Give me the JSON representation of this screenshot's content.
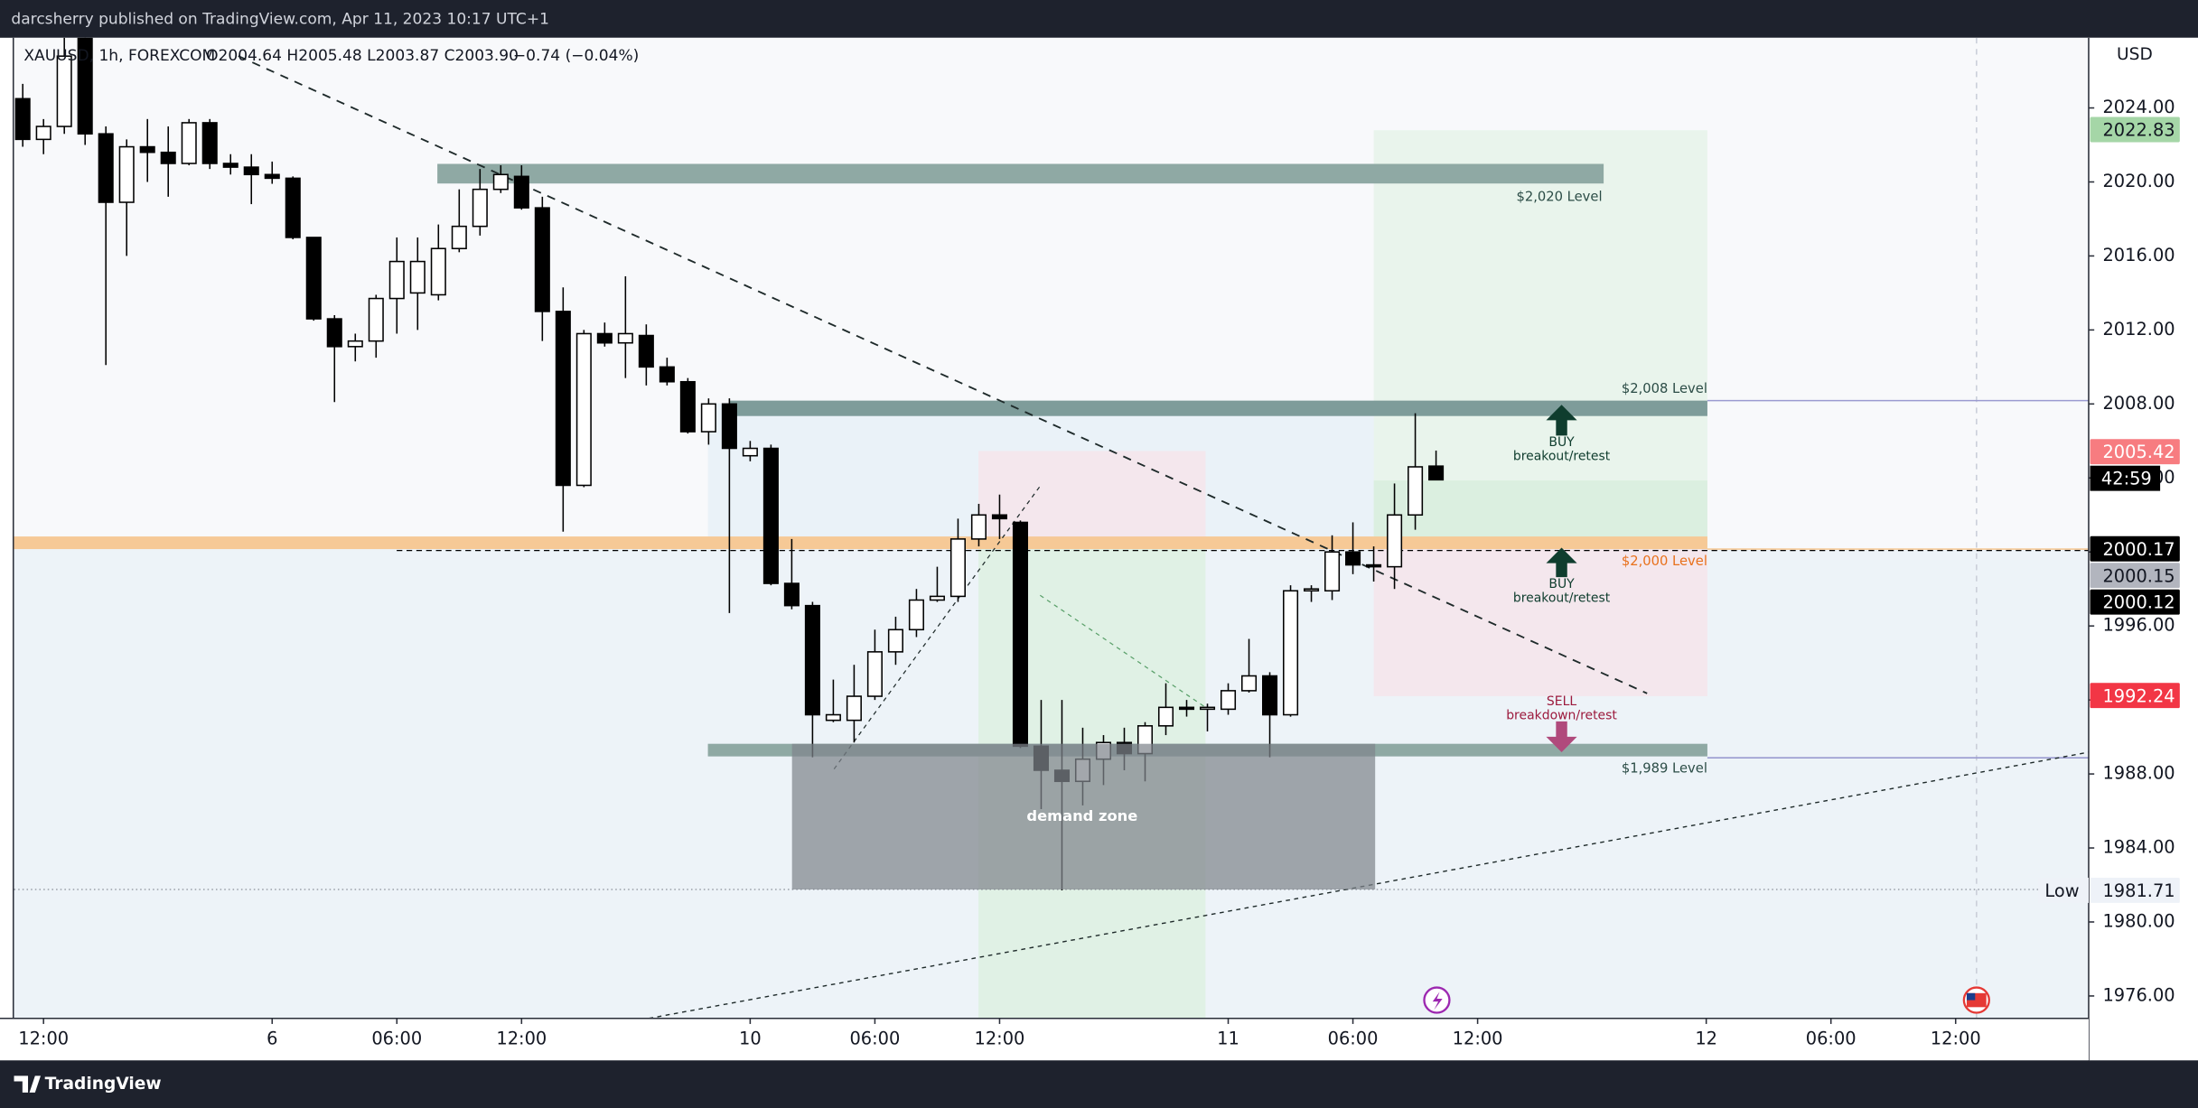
{
  "header": {
    "publisher": "darcsherry published on TradingView.com, Apr 11, 2023 10:17 UTC+1",
    "brand": "TradingView"
  },
  "chart_data": {
    "type": "candlestick",
    "symbol": "XAUUSD, 1h, FOREXCOM",
    "ohlc": "O2004.64 H2005.48 L2003.87 C2003.90",
    "change": "−0.74 (−0.04%)",
    "y_unit": "USD",
    "x": [
      -1,
      0,
      1,
      2,
      3,
      4,
      5,
      6,
      7,
      8,
      9,
      10,
      11,
      12,
      13,
      14,
      15,
      16,
      17,
      18,
      19,
      20,
      21,
      22,
      23,
      24,
      25,
      26,
      27,
      28,
      29,
      30,
      31,
      32,
      33,
      34,
      35,
      36,
      37,
      38,
      39,
      40,
      41,
      42,
      43,
      44,
      45,
      46,
      47,
      48,
      49,
      50,
      51,
      52,
      53,
      54,
      55,
      56,
      57,
      58,
      59,
      60,
      61,
      62,
      63,
      64,
      65,
      66,
      67
    ],
    "open": [
      2024.5,
      2022.3,
      2023.0,
      2027.8,
      2022.6,
      2018.9,
      2021.9,
      2021.6,
      2021.0,
      2023.2,
      2021.0,
      2020.8,
      2020.4,
      2020.2,
      2017.0,
      2012.6,
      2011.1,
      2011.4,
      2013.7,
      2014.0,
      2013.9,
      2016.4,
      2017.6,
      2019.6,
      2020.3,
      2018.6,
      2013.0,
      2003.6,
      2011.8,
      2011.3,
      2011.7,
      2010.0,
      2009.2,
      2006.5,
      2008.0,
      2005.2,
      2005.6,
      1998.3,
      1997.1,
      1990.9,
      1990.9,
      1992.2,
      1994.6,
      1995.8,
      1997.4,
      1997.6,
      2000.7,
      2002.0,
      2001.6,
      1989.5,
      1988.2,
      1987.6,
      1988.8,
      1989.7,
      1989.1,
      1990.6,
      1991.6,
      1991.5,
      1991.5,
      1992.5,
      1993.3,
      1991.2,
      1997.9,
      1997.9,
      2000.0,
      1999.3,
      1999.2,
      2002.0,
      2004.64
    ],
    "high": [
      2025.3,
      2023.4,
      2027.8,
      2027.8,
      2023.0,
      2022.3,
      2023.4,
      2023.0,
      2023.4,
      2023.4,
      2021.5,
      2021.5,
      2021.1,
      2020.3,
      2017.0,
      2012.8,
      2011.8,
      2013.9,
      2017.0,
      2017.0,
      2017.7,
      2019.6,
      2020.7,
      2020.9,
      2020.9,
      2019.2,
      2014.3,
      2012.0,
      2012.4,
      2014.9,
      2012.3,
      2010.5,
      2009.4,
      2008.3,
      2008.3,
      2006.0,
      2005.8,
      2000.7,
      1997.3,
      1993.1,
      1993.9,
      1995.8,
      1996.5,
      1998.0,
      1999.2,
      2001.8,
      2002.6,
      2003.1,
      2001.7,
      1992.0,
      1992.0,
      1990.5,
      1990.1,
      1990.5,
      1990.8,
      1992.9,
      1992.0,
      1991.8,
      1992.9,
      1995.3,
      1993.5,
      1998.2,
      1998.2,
      2000.9,
      2001.6,
      2000.3,
      2003.7,
      2007.5,
      2005.48
    ],
    "low": [
      2021.9,
      2021.5,
      2022.6,
      2022.0,
      2010.1,
      2016.0,
      2020.0,
      2019.2,
      2020.9,
      2020.7,
      2020.4,
      2018.8,
      2019.9,
      2016.9,
      2012.5,
      2008.1,
      2010.3,
      2010.5,
      2011.8,
      2012.0,
      2013.6,
      2016.2,
      2017.1,
      2019.4,
      2018.5,
      2011.4,
      2001.1,
      2003.5,
      2011.1,
      2009.4,
      2009.0,
      2009.0,
      2006.4,
      2005.8,
      1996.7,
      2004.9,
      1998.2,
      1996.9,
      1988.9,
      1990.8,
      1989.7,
      1992.0,
      1993.9,
      1995.4,
      1997.3,
      1997.3,
      2000.3,
      2000.7,
      1989.4,
      1986.1,
      1981.71,
      1986.3,
      1987.4,
      1988.2,
      1987.6,
      1990.1,
      1991.1,
      1990.3,
      1991.2,
      1992.4,
      1988.9,
      1991.1,
      1997.3,
      1997.4,
      1998.8,
      1998.4,
      1998.0,
      2001.2,
      2003.87
    ],
    "close": [
      2022.3,
      2023.0,
      2026.8,
      2022.6,
      2018.9,
      2021.9,
      2021.6,
      2021.0,
      2023.2,
      2021.0,
      2020.8,
      2020.4,
      2020.2,
      2017.0,
      2012.6,
      2011.1,
      2011.4,
      2013.7,
      2015.7,
      2015.7,
      2016.4,
      2017.6,
      2019.6,
      2020.4,
      2018.6,
      2013.0,
      2003.6,
      2011.8,
      2011.3,
      2011.8,
      2010.0,
      2009.2,
      2006.5,
      2008.0,
      2005.6,
      2005.6,
      1998.3,
      1997.1,
      1991.2,
      1991.2,
      1992.2,
      1994.6,
      1995.8,
      1997.4,
      1997.6,
      2000.7,
      2002.0,
      2001.8,
      1989.5,
      1988.2,
      1987.6,
      1988.8,
      1989.7,
      1989.1,
      1990.6,
      1991.6,
      1991.5,
      1991.6,
      1992.5,
      1993.3,
      1991.2,
      1997.9,
      1998.0,
      2000.0,
      1999.3,
      1999.2,
      2002.0,
      2004.6,
      2003.9
    ],
    "up_color": "#ffffff",
    "down_color": "#000000",
    "border_color": "#000000",
    "xlim": [
      -1.42,
      98.4
    ],
    "ylim": [
      1974.79,
      2027.79
    ],
    "xticks": [
      {
        "value": 0,
        "label": "12:00"
      },
      {
        "value": 11,
        "label": "6"
      },
      {
        "value": 17,
        "label": "06:00"
      },
      {
        "value": 23,
        "label": "12:00"
      },
      {
        "value": 34,
        "label": "10"
      },
      {
        "value": 40,
        "label": "06:00"
      },
      {
        "value": 46,
        "label": "12:00"
      },
      {
        "value": 57,
        "label": "11"
      },
      {
        "value": 63,
        "label": "06:00"
      },
      {
        "value": 69,
        "label": "12:00"
      },
      {
        "value": 80,
        "label": "12"
      },
      {
        "value": 86,
        "label": "06:00"
      },
      {
        "value": 92,
        "label": "12:00"
      }
    ],
    "yticks": [
      {
        "value": 2024,
        "label": "2024.00"
      },
      {
        "value": 2020,
        "label": "2020.00"
      },
      {
        "value": 2016,
        "label": "2016.00"
      },
      {
        "value": 2012,
        "label": "2012.00"
      },
      {
        "value": 2008,
        "label": "2008.00"
      },
      {
        "value": 2004,
        "label": "2004.00"
      },
      {
        "value": 2000,
        "label": "2000.00"
      },
      {
        "value": 1996,
        "label": "1996.00"
      },
      {
        "value": 1992,
        "label": "1992.00"
      },
      {
        "value": 1988,
        "label": "1988.00"
      },
      {
        "value": 1984,
        "label": "1984.00"
      },
      {
        "value": 1980,
        "label": "1980.00"
      },
      {
        "value": 1976,
        "label": "1976.00"
      }
    ],
    "price_tags": [
      {
        "value": 2022.83,
        "color": "#a5d6a7",
        "text_color": "#131722"
      },
      {
        "value": 2005.42,
        "color": "#f77c80",
        "text_color": "#ffffff"
      },
      {
        "value": 2000.17,
        "color": "#000000",
        "text_color": "#ffffff"
      },
      {
        "value": 2000.15,
        "color": "#b2b5be",
        "text_color": "#131722"
      },
      {
        "value": 2000.12,
        "color": "#000000",
        "text_color": "#ffffff"
      },
      {
        "value": 1992.24,
        "color": "#f23645",
        "text_color": "#ffffff"
      },
      {
        "value": 1981.71,
        "color": "#eef2f8",
        "text_color": "#131722"
      }
    ],
    "countdown": "42:59",
    "low_label": "Low",
    "annotations": {
      "level_2020": "$2,020 Level",
      "level_2008": "$2,008 Level",
      "level_2000": "$2,000 Level",
      "level_1989": "$1,989 Level",
      "buy_1": "BUY",
      "buy_1_sub": "breakout/retest",
      "buy_2": "BUY",
      "buy_2_sub": "breakout/retest",
      "sell": "SELL",
      "sell_sub": "breakdown/retest",
      "demand": "demand zone"
    }
  }
}
